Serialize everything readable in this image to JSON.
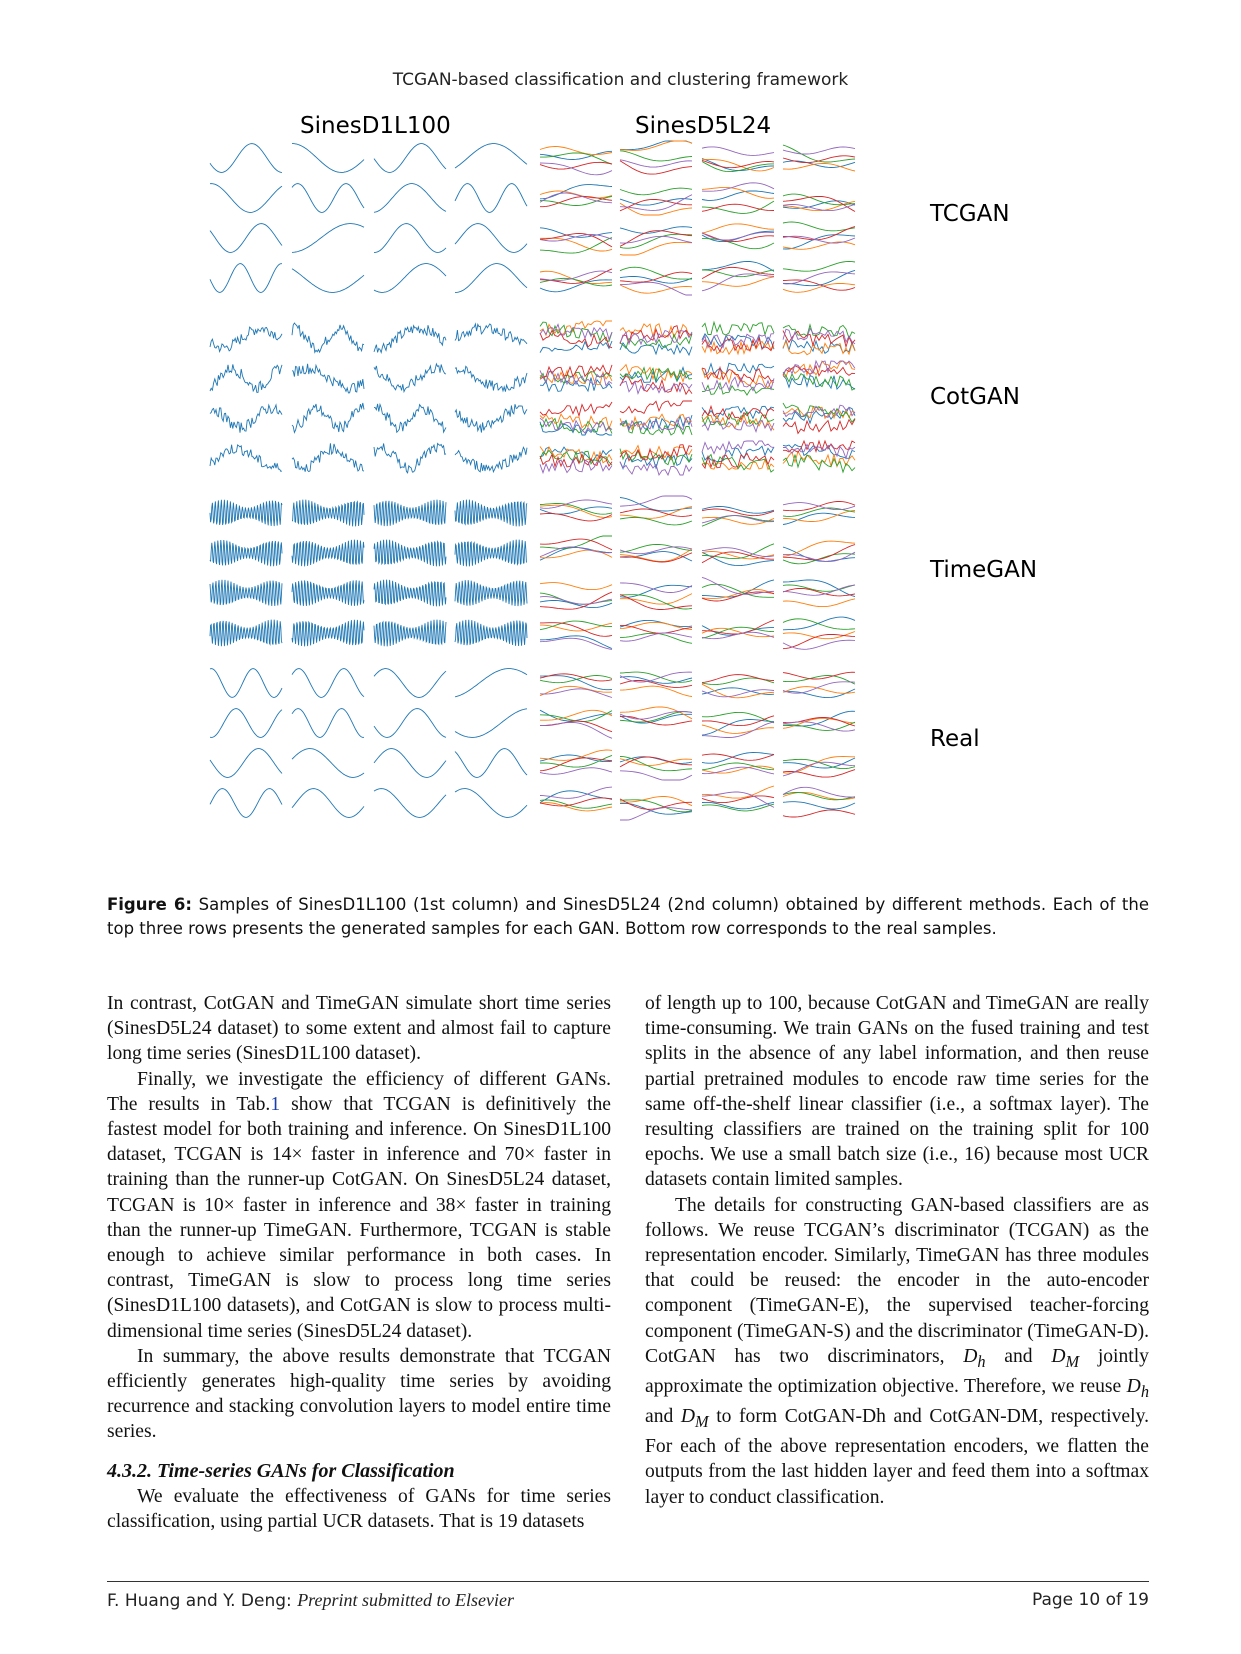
{
  "header": {
    "running_title": "TCGAN-based classification and clustering framework"
  },
  "figure": {
    "column_titles": [
      "SinesD1L100",
      "SinesD5L24"
    ],
    "row_labels": [
      "TCGAN",
      "CotGAN",
      "TimeGAN",
      "Real"
    ],
    "series_colors": [
      "#1f77b4",
      "#ff7f0e",
      "#2ca02c",
      "#d62728",
      "#9467bd"
    ],
    "caption_label": "Figure 6:",
    "caption_text": "Samples of SinesD1L100 (1st column) and SinesD5L24 (2nd column) obtained by different methods. Each of the top three rows presents the generated samples for each GAN. Bottom row corresponds to the real samples."
  },
  "body": {
    "left": {
      "p1": "In contrast, CotGAN and TimeGAN simulate short time series (SinesD5L24 dataset) to some extent and almost fail to capture long time series (SinesD1L100 dataset).",
      "p2_a": "Finally, we investigate the efficiency of different GANs. The results in Tab.",
      "p2_ref": "1",
      "p2_b": " show that TCGAN is definitively the fastest model for both training and inference. On SinesD1L100 dataset, TCGAN is 14× faster in inference and 70× faster in training than the runner-up CotGAN. On SinesD5L24 dataset, TCGAN is 10× faster in inference and 38× faster in training than the runner-up TimeGAN. Furthermore, TCGAN is stable enough to achieve similar performance in both cases. In contrast, TimeGAN is slow to process long time series (SinesD1L100 datasets), and CotGAN is slow to process multi-dimensional time series (SinesD5L24 dataset).",
      "p3": "In summary, the above results demonstrate that TCGAN efficiently generates high-quality time series by avoiding recurrence and stacking convolution layers to model entire time series.",
      "section_heading": "4.3.2. Time-series GANs for Classification",
      "p4": "We evaluate the effectiveness of GANs for time series classification, using partial UCR datasets. That is 19 datasets"
    },
    "right": {
      "p1": "of length up to 100, because CotGAN and TimeGAN are really time-consuming. We train GANs on the fused training and test splits in the absence of any label information, and then reuse partial pretrained modules to encode raw time series for the same off-the-shelf linear classifier (i.e., a softmax layer). The resulting classifiers are trained on the training split for 100 epochs. We use a small batch size (i.e., 16) because most UCR datasets contain limited samples.",
      "p2_a": "The details for constructing GAN-based classifiers are as follows. We reuse TCGAN’s discriminator (TCGAN) as the representation encoder. Similarly, TimeGAN has three modules that could be reused: the encoder in the auto-encoder component (TimeGAN-E), the supervised teacher-forcing component (TimeGAN-S) and the discriminator (TimeGAN-D). CotGAN has two discriminators, ",
      "p2_b": " and ",
      "p2_c": " jointly approximate the optimization objective. Therefore, we reuse ",
      "p2_d": " and ",
      "p2_e": " to form CotGAN-Dh and CotGAN-DM, respectively. For each of the above representation encoders, we flatten the outputs from the last hidden layer and feed them into a softmax layer to conduct classification.",
      "sym_dh": "D",
      "sym_dh_sub": "h",
      "sym_dm": "D",
      "sym_dm_sub": "M"
    }
  },
  "footer": {
    "authors": "F. Huang and Y. Deng:",
    "journal": "Preprint submitted to Elsevier",
    "page": "Page 10 of 19"
  }
}
